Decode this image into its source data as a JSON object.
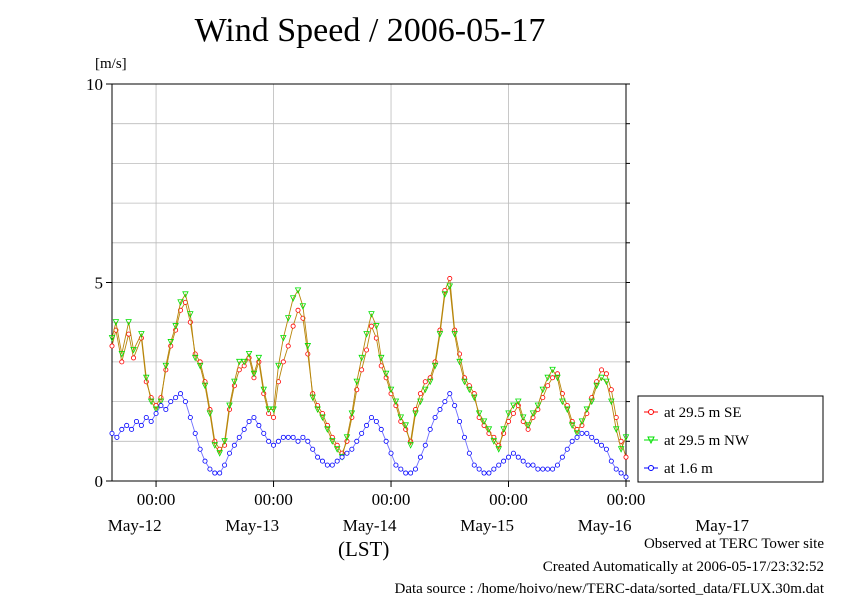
{
  "chart_data": {
    "type": "line",
    "title": "Wind Speed / 2006-05-17",
    "ylabel": "[m/s]",
    "xlabel": "(LST)",
    "ylim": [
      0,
      10
    ],
    "yticks": [
      "0",
      "5",
      "10"
    ],
    "x_start": "May-11 15:00",
    "x_end": "May-17 23:30",
    "x_interval_minutes": 30,
    "time_ticks": [
      "00:00",
      "00:00",
      "00:00",
      "00:00",
      "00:00"
    ],
    "date_ticks": [
      "May-12",
      "May-13",
      "May-14",
      "May-15",
      "May-16",
      "May-17"
    ],
    "grid": true,
    "legend_position": "right",
    "series": [
      {
        "name": "at 29.5 m SE",
        "color": "#ff0000",
        "marker": "circle",
        "points": [
          [
            0,
            3.4
          ],
          [
            0.4,
            3.8
          ],
          [
            1,
            3.0
          ],
          [
            1.7,
            3.7
          ],
          [
            2.2,
            3.1
          ],
          [
            3,
            3.6
          ],
          [
            3.5,
            2.5
          ],
          [
            4,
            2.1
          ],
          [
            4.5,
            1.9
          ],
          [
            5,
            2.1
          ],
          [
            5.5,
            2.8
          ],
          [
            6,
            3.4
          ],
          [
            6.5,
            3.8
          ],
          [
            7,
            4.3
          ],
          [
            7.5,
            4.5
          ],
          [
            8,
            4.0
          ],
          [
            8.5,
            3.2
          ],
          [
            9,
            3.0
          ],
          [
            9.5,
            2.5
          ],
          [
            10,
            1.8
          ],
          [
            10.5,
            1.0
          ],
          [
            11,
            0.8
          ],
          [
            11.5,
            0.9
          ],
          [
            12,
            1.8
          ],
          [
            12.5,
            2.4
          ],
          [
            13,
            2.8
          ],
          [
            13.5,
            2.9
          ],
          [
            14,
            3.1
          ],
          [
            14.5,
            2.6
          ],
          [
            15,
            3.0
          ],
          [
            15.5,
            2.2
          ],
          [
            16,
            1.7
          ],
          [
            16.5,
            1.6
          ],
          [
            17,
            2.5
          ],
          [
            17.5,
            3.0
          ],
          [
            18,
            3.4
          ],
          [
            18.5,
            3.9
          ],
          [
            19,
            4.3
          ],
          [
            19.5,
            4.1
          ],
          [
            20,
            3.2
          ],
          [
            20.5,
            2.2
          ],
          [
            21,
            1.9
          ],
          [
            21.5,
            1.7
          ],
          [
            22,
            1.4
          ],
          [
            22.5,
            1.1
          ],
          [
            23,
            0.9
          ],
          [
            23.5,
            0.7
          ],
          [
            24,
            1.0
          ],
          [
            24.5,
            1.6
          ],
          [
            25,
            2.3
          ],
          [
            25.5,
            2.8
          ],
          [
            26,
            3.3
          ],
          [
            26.5,
            3.9
          ],
          [
            27,
            3.6
          ],
          [
            27.5,
            2.9
          ],
          [
            28,
            2.6
          ],
          [
            28.5,
            2.2
          ],
          [
            29,
            1.9
          ],
          [
            29.5,
            1.5
          ],
          [
            30,
            1.3
          ],
          [
            30.5,
            1.0
          ],
          [
            31,
            1.8
          ],
          [
            31.5,
            2.2
          ],
          [
            32,
            2.5
          ],
          [
            32.5,
            2.6
          ],
          [
            33,
            3.0
          ],
          [
            33.5,
            3.8
          ],
          [
            34,
            4.8
          ],
          [
            34.5,
            5.1
          ],
          [
            35,
            3.8
          ],
          [
            35.5,
            3.2
          ],
          [
            36,
            2.6
          ],
          [
            36.5,
            2.4
          ],
          [
            37,
            2.2
          ],
          [
            37.5,
            1.6
          ],
          [
            38,
            1.4
          ],
          [
            38.5,
            1.2
          ],
          [
            39,
            1.1
          ],
          [
            39.5,
            0.9
          ],
          [
            40,
            1.2
          ],
          [
            40.5,
            1.5
          ],
          [
            41,
            1.7
          ],
          [
            41.5,
            1.9
          ],
          [
            42,
            1.5
          ],
          [
            42.5,
            1.3
          ],
          [
            43,
            1.6
          ],
          [
            43.5,
            1.8
          ],
          [
            44,
            2.1
          ],
          [
            44.5,
            2.4
          ],
          [
            45,
            2.6
          ],
          [
            45.5,
            2.7
          ],
          [
            46,
            2.2
          ],
          [
            46.5,
            1.9
          ],
          [
            47,
            1.5
          ],
          [
            47.5,
            1.3
          ],
          [
            48,
            1.4
          ],
          [
            48.5,
            1.7
          ],
          [
            49,
            2.1
          ],
          [
            49.5,
            2.5
          ],
          [
            50,
            2.8
          ],
          [
            50.5,
            2.7
          ],
          [
            51,
            2.3
          ],
          [
            51.5,
            1.6
          ],
          [
            52,
            1.0
          ],
          [
            52.5,
            0.6
          ]
        ]
      },
      {
        "name": "at 29.5 m NW",
        "color": "#00e000",
        "marker": "down-triangle",
        "points": [
          [
            0,
            3.6
          ],
          [
            0.4,
            4.0
          ],
          [
            1,
            3.2
          ],
          [
            1.7,
            4.0
          ],
          [
            2.2,
            3.3
          ],
          [
            3,
            3.7
          ],
          [
            3.5,
            2.6
          ],
          [
            4,
            2.0
          ],
          [
            4.5,
            1.8
          ],
          [
            5,
            2.0
          ],
          [
            5.5,
            2.9
          ],
          [
            6,
            3.5
          ],
          [
            6.5,
            3.9
          ],
          [
            7,
            4.5
          ],
          [
            7.5,
            4.7
          ],
          [
            8,
            4.2
          ],
          [
            8.5,
            3.1
          ],
          [
            9,
            2.9
          ],
          [
            9.5,
            2.4
          ],
          [
            10,
            1.7
          ],
          [
            10.5,
            0.9
          ],
          [
            11,
            0.7
          ],
          [
            11.5,
            1.0
          ],
          [
            12,
            1.9
          ],
          [
            12.5,
            2.5
          ],
          [
            13,
            3.0
          ],
          [
            13.5,
            3.0
          ],
          [
            14,
            3.2
          ],
          [
            14.5,
            2.7
          ],
          [
            15,
            3.1
          ],
          [
            15.5,
            2.3
          ],
          [
            16,
            1.8
          ],
          [
            16.5,
            1.8
          ],
          [
            17,
            2.9
          ],
          [
            17.5,
            3.6
          ],
          [
            18,
            4.1
          ],
          [
            18.5,
            4.6
          ],
          [
            19,
            4.8
          ],
          [
            19.5,
            4.4
          ],
          [
            20,
            3.4
          ],
          [
            20.5,
            2.1
          ],
          [
            21,
            1.8
          ],
          [
            21.5,
            1.6
          ],
          [
            22,
            1.3
          ],
          [
            22.5,
            1.0
          ],
          [
            23,
            0.8
          ],
          [
            23.5,
            0.6
          ],
          [
            24,
            1.1
          ],
          [
            24.5,
            1.7
          ],
          [
            25,
            2.5
          ],
          [
            25.5,
            3.1
          ],
          [
            26,
            3.7
          ],
          [
            26.5,
            4.2
          ],
          [
            27,
            3.9
          ],
          [
            27.5,
            3.1
          ],
          [
            28,
            2.7
          ],
          [
            28.5,
            2.3
          ],
          [
            29,
            2.0
          ],
          [
            29.5,
            1.6
          ],
          [
            30,
            1.4
          ],
          [
            30.5,
            0.9
          ],
          [
            31,
            1.7
          ],
          [
            31.5,
            2.0
          ],
          [
            32,
            2.3
          ],
          [
            32.5,
            2.5
          ],
          [
            33,
            2.9
          ],
          [
            33.5,
            3.7
          ],
          [
            34,
            4.7
          ],
          [
            34.5,
            4.9
          ],
          [
            35,
            3.7
          ],
          [
            35.5,
            3.0
          ],
          [
            36,
            2.5
          ],
          [
            36.5,
            2.3
          ],
          [
            37,
            2.1
          ],
          [
            37.5,
            1.7
          ],
          [
            38,
            1.5
          ],
          [
            38.5,
            1.3
          ],
          [
            39,
            1.0
          ],
          [
            39.5,
            0.8
          ],
          [
            40,
            1.3
          ],
          [
            40.5,
            1.7
          ],
          [
            41,
            1.9
          ],
          [
            41.5,
            2.0
          ],
          [
            42,
            1.6
          ],
          [
            42.5,
            1.4
          ],
          [
            43,
            1.7
          ],
          [
            43.5,
            1.9
          ],
          [
            44,
            2.3
          ],
          [
            44.5,
            2.6
          ],
          [
            45,
            2.8
          ],
          [
            45.5,
            2.6
          ],
          [
            46,
            2.0
          ],
          [
            46.5,
            1.8
          ],
          [
            47,
            1.4
          ],
          [
            47.5,
            1.2
          ],
          [
            48,
            1.5
          ],
          [
            48.5,
            1.8
          ],
          [
            49,
            2.0
          ],
          [
            49.5,
            2.4
          ],
          [
            50,
            2.6
          ],
          [
            50.5,
            2.5
          ],
          [
            51,
            2.0
          ],
          [
            51.5,
            1.3
          ],
          [
            52,
            0.8
          ],
          [
            52.5,
            1.1
          ]
        ]
      },
      {
        "name": "at 1.6 m",
        "color": "#0000ff",
        "marker": "circle",
        "points": [
          [
            0,
            1.2
          ],
          [
            0.5,
            1.1
          ],
          [
            1,
            1.3
          ],
          [
            1.5,
            1.4
          ],
          [
            2,
            1.3
          ],
          [
            2.5,
            1.5
          ],
          [
            3,
            1.4
          ],
          [
            3.5,
            1.6
          ],
          [
            4,
            1.5
          ],
          [
            4.5,
            1.7
          ],
          [
            5,
            1.9
          ],
          [
            5.5,
            1.8
          ],
          [
            6,
            2.0
          ],
          [
            6.5,
            2.1
          ],
          [
            7,
            2.2
          ],
          [
            7.5,
            2.0
          ],
          [
            8,
            1.6
          ],
          [
            8.5,
            1.2
          ],
          [
            9,
            0.8
          ],
          [
            9.5,
            0.5
          ],
          [
            10,
            0.3
          ],
          [
            10.5,
            0.2
          ],
          [
            11,
            0.2
          ],
          [
            11.5,
            0.4
          ],
          [
            12,
            0.7
          ],
          [
            12.5,
            0.9
          ],
          [
            13,
            1.1
          ],
          [
            13.5,
            1.3
          ],
          [
            14,
            1.5
          ],
          [
            14.5,
            1.6
          ],
          [
            15,
            1.4
          ],
          [
            15.5,
            1.2
          ],
          [
            16,
            1.0
          ],
          [
            16.5,
            0.9
          ],
          [
            17,
            1.0
          ],
          [
            17.5,
            1.1
          ],
          [
            18,
            1.1
          ],
          [
            18.5,
            1.1
          ],
          [
            19,
            1.0
          ],
          [
            19.5,
            1.1
          ],
          [
            20,
            1.0
          ],
          [
            20.5,
            0.8
          ],
          [
            21,
            0.6
          ],
          [
            21.5,
            0.5
          ],
          [
            22,
            0.4
          ],
          [
            22.5,
            0.4
          ],
          [
            23,
            0.5
          ],
          [
            23.5,
            0.6
          ],
          [
            24,
            0.7
          ],
          [
            24.5,
            0.8
          ],
          [
            25,
            1.0
          ],
          [
            25.5,
            1.2
          ],
          [
            26,
            1.4
          ],
          [
            26.5,
            1.6
          ],
          [
            27,
            1.5
          ],
          [
            27.5,
            1.3
          ],
          [
            28,
            1.0
          ],
          [
            28.5,
            0.7
          ],
          [
            29,
            0.4
          ],
          [
            29.5,
            0.3
          ],
          [
            30,
            0.2
          ],
          [
            30.5,
            0.2
          ],
          [
            31,
            0.3
          ],
          [
            31.5,
            0.6
          ],
          [
            32,
            0.9
          ],
          [
            32.5,
            1.3
          ],
          [
            33,
            1.6
          ],
          [
            33.5,
            1.8
          ],
          [
            34,
            2.0
          ],
          [
            34.5,
            2.2
          ],
          [
            35,
            1.9
          ],
          [
            35.5,
            1.5
          ],
          [
            36,
            1.1
          ],
          [
            36.5,
            0.7
          ],
          [
            37,
            0.4
          ],
          [
            37.5,
            0.3
          ],
          [
            38,
            0.2
          ],
          [
            38.5,
            0.2
          ],
          [
            39,
            0.3
          ],
          [
            39.5,
            0.4
          ],
          [
            40,
            0.5
          ],
          [
            40.5,
            0.6
          ],
          [
            41,
            0.7
          ],
          [
            41.5,
            0.6
          ],
          [
            42,
            0.5
          ],
          [
            42.5,
            0.4
          ],
          [
            43,
            0.4
          ],
          [
            43.5,
            0.3
          ],
          [
            44,
            0.3
          ],
          [
            44.5,
            0.3
          ],
          [
            45,
            0.3
          ],
          [
            45.5,
            0.4
          ],
          [
            46,
            0.6
          ],
          [
            46.5,
            0.8
          ],
          [
            47,
            1.0
          ],
          [
            47.5,
            1.1
          ],
          [
            48,
            1.2
          ],
          [
            48.5,
            1.2
          ],
          [
            49,
            1.1
          ],
          [
            49.5,
            1.0
          ],
          [
            50,
            0.9
          ],
          [
            50.5,
            0.8
          ],
          [
            51,
            0.5
          ],
          [
            51.5,
            0.3
          ],
          [
            52,
            0.2
          ],
          [
            52.5,
            0.1
          ]
        ]
      }
    ]
  },
  "footer": {
    "observed": "Observed at TERC Tower site",
    "created": "Created Automatically at 2006-05-17/23:32:52",
    "source": "Data source : /home/hoivo/new/TERC-data/sorted_data/FLUX.30m.dat"
  }
}
